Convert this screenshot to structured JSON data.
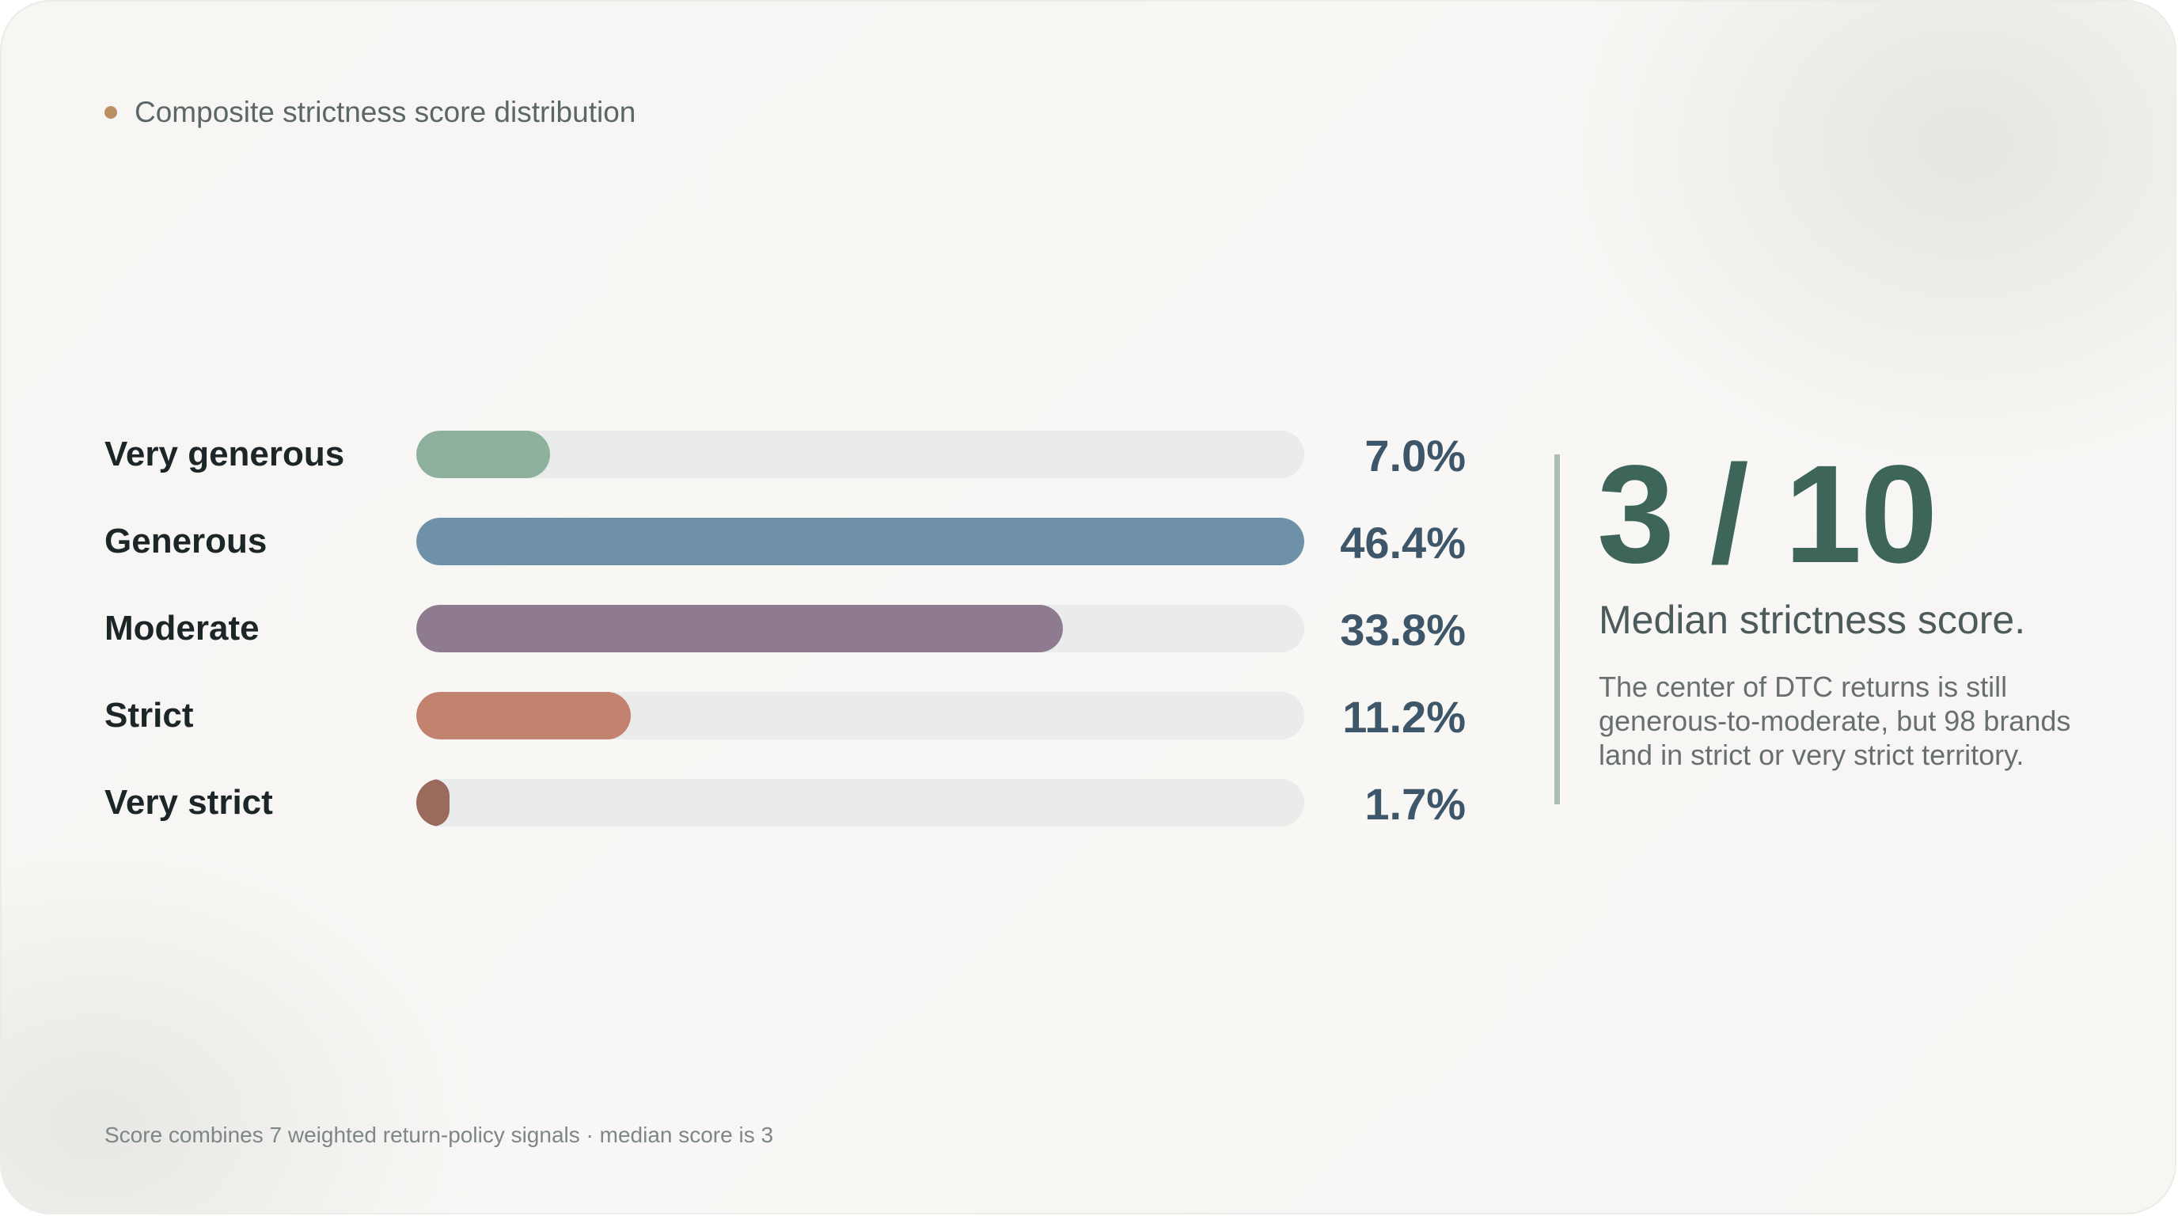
{
  "kicker": {
    "text": "Composite strictness score distribution",
    "dot_color": "#b99162"
  },
  "chart_data": {
    "type": "bar",
    "orientation": "horizontal",
    "title": "Composite strictness score distribution",
    "categories": [
      "Very generous",
      "Generous",
      "Moderate",
      "Strict",
      "Very strict"
    ],
    "values": [
      7.0,
      46.4,
      33.8,
      11.2,
      1.7
    ],
    "value_labels": [
      "7.0%",
      "46.4%",
      "33.8%",
      "11.2%",
      "1.7%"
    ],
    "unit": "%",
    "xlim": [
      0,
      46.4
    ],
    "colors": [
      "#8eb19e",
      "#6f90a9",
      "#8f7b8f",
      "#c2826e",
      "#9a6a5c"
    ],
    "track_color": "#eaebeb",
    "grid": false,
    "legend": "none"
  },
  "kpi": {
    "value": "3 / 10",
    "caption": "Median strictness score.",
    "note": "The center of DTC returns is still generous-to-moderate, but 98 brands land in strict or very strict territory.",
    "accent_color": "#3d6559"
  },
  "footnote": "Score combines 7 weighted return-policy signals · median score is 3"
}
